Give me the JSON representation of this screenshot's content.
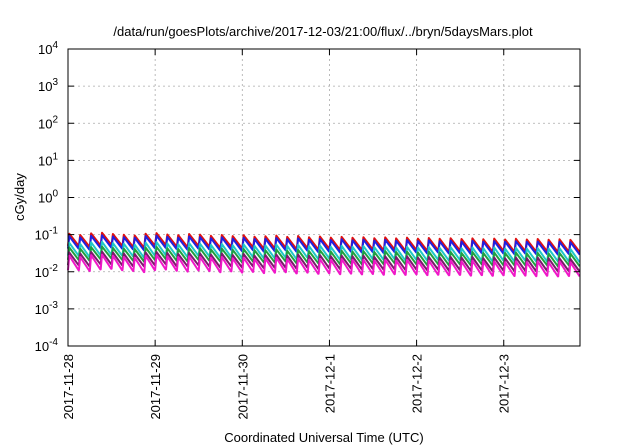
{
  "chart_data": {
    "type": "line",
    "title": "/data/run/goesPlots/archive/2017-12-03/21:00/flux/../bryn/5daysMars.plot",
    "xlabel": "Coordinated Universal Time (UTC)",
    "ylabel": "cGy/day",
    "yscale": "log",
    "ylim": [
      0.0001,
      10000
    ],
    "xlim": [
      "2017-11-28 00:00",
      "2017-12-03 21:00"
    ],
    "y_ticks": [
      {
        "base": "10",
        "exp": "-4"
      },
      {
        "base": "10",
        "exp": "-3"
      },
      {
        "base": "10",
        "exp": "-2"
      },
      {
        "base": "10",
        "exp": "-1"
      },
      {
        "base": "10",
        "exp": "0"
      },
      {
        "base": "10",
        "exp": "1"
      },
      {
        "base": "10",
        "exp": "2"
      },
      {
        "base": "10",
        "exp": "3"
      },
      {
        "base": "10",
        "exp": "4"
      }
    ],
    "x_ticks": [
      "2017-11-28",
      "2017-11-29",
      "2017-11-30",
      "2017-12-1",
      "2017-12-2",
      "2017-12-3"
    ],
    "grid": true,
    "legend": "none",
    "sawtooth_period_hours": 3,
    "series": [
      {
        "color": "#e01010",
        "peak_values": [
          0.105,
          0.098,
          0.108,
          0.112,
          0.104,
          0.099,
          0.095,
          0.106,
          0.11,
          0.101,
          0.097,
          0.104,
          0.1,
          0.093,
          0.098,
          0.091,
          0.096,
          0.088,
          0.09,
          0.094,
          0.087,
          0.092,
          0.085,
          0.089,
          0.083,
          0.087,
          0.082,
          0.085,
          0.08,
          0.084,
          0.079,
          0.083,
          0.078,
          0.081,
          0.077,
          0.08,
          0.076,
          0.079,
          0.075,
          0.078,
          0.074,
          0.077,
          0.074,
          0.076,
          0.073,
          0.075,
          0.072
        ],
        "trough_values": [
          0.05,
          0.047,
          0.052,
          0.054,
          0.05,
          0.047,
          0.045,
          0.051,
          0.053,
          0.048,
          0.046,
          0.05,
          0.048,
          0.044,
          0.047,
          0.043,
          0.046,
          0.042,
          0.043,
          0.045,
          0.041,
          0.044,
          0.04,
          0.042,
          0.039,
          0.041,
          0.039,
          0.04,
          0.038,
          0.04,
          0.037,
          0.039,
          0.037,
          0.038,
          0.036,
          0.038,
          0.036,
          0.037,
          0.035,
          0.037,
          0.035,
          0.036,
          0.035,
          0.036,
          0.034,
          0.035,
          0.034
        ]
      },
      {
        "color": "#2020e0",
        "peak_values": [
          0.09,
          0.084,
          0.093,
          0.096,
          0.089,
          0.085,
          0.082,
          0.091,
          0.094,
          0.087,
          0.083,
          0.089,
          0.086,
          0.08,
          0.084,
          0.078,
          0.082,
          0.076,
          0.077,
          0.081,
          0.075,
          0.079,
          0.073,
          0.076,
          0.071,
          0.075,
          0.07,
          0.073,
          0.069,
          0.072,
          0.068,
          0.071,
          0.067,
          0.07,
          0.066,
          0.069,
          0.065,
          0.068,
          0.064,
          0.067,
          0.064,
          0.066,
          0.064,
          0.065,
          0.063,
          0.064,
          0.062
        ],
        "trough_values": [
          0.042,
          0.039,
          0.044,
          0.045,
          0.042,
          0.04,
          0.038,
          0.043,
          0.044,
          0.041,
          0.039,
          0.042,
          0.04,
          0.037,
          0.039,
          0.036,
          0.038,
          0.035,
          0.036,
          0.038,
          0.035,
          0.037,
          0.034,
          0.035,
          0.033,
          0.035,
          0.033,
          0.034,
          0.032,
          0.034,
          0.032,
          0.033,
          0.031,
          0.033,
          0.031,
          0.032,
          0.03,
          0.032,
          0.03,
          0.031,
          0.03,
          0.031,
          0.03,
          0.03,
          0.029,
          0.03,
          0.029
        ]
      },
      {
        "color": "#20c8c8",
        "peak_values": [
          0.06,
          0.056,
          0.062,
          0.064,
          0.059,
          0.057,
          0.054,
          0.061,
          0.063,
          0.058,
          0.055,
          0.059,
          0.057,
          0.053,
          0.056,
          0.052,
          0.055,
          0.05,
          0.051,
          0.054,
          0.05,
          0.053,
          0.049,
          0.051,
          0.047,
          0.05,
          0.047,
          0.049,
          0.046,
          0.048,
          0.045,
          0.047,
          0.045,
          0.046,
          0.044,
          0.046,
          0.043,
          0.045,
          0.043,
          0.045,
          0.042,
          0.044,
          0.042,
          0.043,
          0.042,
          0.043,
          0.041
        ],
        "trough_values": [
          0.027,
          0.025,
          0.028,
          0.029,
          0.027,
          0.026,
          0.024,
          0.027,
          0.028,
          0.026,
          0.025,
          0.027,
          0.026,
          0.024,
          0.025,
          0.023,
          0.025,
          0.023,
          0.023,
          0.024,
          0.022,
          0.024,
          0.022,
          0.023,
          0.021,
          0.022,
          0.021,
          0.022,
          0.021,
          0.022,
          0.02,
          0.021,
          0.02,
          0.021,
          0.02,
          0.021,
          0.019,
          0.02,
          0.019,
          0.02,
          0.019,
          0.02,
          0.019,
          0.019,
          0.019,
          0.019,
          0.018
        ]
      },
      {
        "color": "#20a040",
        "peak_values": [
          0.045,
          0.042,
          0.046,
          0.048,
          0.044,
          0.042,
          0.041,
          0.045,
          0.047,
          0.043,
          0.041,
          0.044,
          0.043,
          0.04,
          0.042,
          0.039,
          0.041,
          0.038,
          0.038,
          0.04,
          0.037,
          0.039,
          0.036,
          0.038,
          0.035,
          0.037,
          0.035,
          0.036,
          0.034,
          0.036,
          0.034,
          0.035,
          0.033,
          0.035,
          0.033,
          0.034,
          0.032,
          0.034,
          0.032,
          0.033,
          0.032,
          0.033,
          0.031,
          0.032,
          0.031,
          0.032,
          0.031
        ],
        "trough_values": [
          0.021,
          0.02,
          0.022,
          0.023,
          0.021,
          0.02,
          0.019,
          0.021,
          0.022,
          0.02,
          0.019,
          0.021,
          0.02,
          0.019,
          0.02,
          0.018,
          0.019,
          0.018,
          0.018,
          0.019,
          0.017,
          0.018,
          0.017,
          0.018,
          0.016,
          0.017,
          0.016,
          0.017,
          0.016,
          0.017,
          0.016,
          0.016,
          0.015,
          0.016,
          0.015,
          0.016,
          0.015,
          0.016,
          0.015,
          0.015,
          0.015,
          0.015,
          0.014,
          0.015,
          0.014,
          0.015,
          0.014
        ]
      },
      {
        "color": "#7a1a6a",
        "peak_values": [
          0.033,
          0.031,
          0.034,
          0.035,
          0.033,
          0.031,
          0.03,
          0.033,
          0.034,
          0.032,
          0.03,
          0.032,
          0.031,
          0.029,
          0.031,
          0.028,
          0.03,
          0.027,
          0.028,
          0.029,
          0.027,
          0.029,
          0.027,
          0.028,
          0.026,
          0.027,
          0.026,
          0.027,
          0.025,
          0.026,
          0.025,
          0.026,
          0.024,
          0.025,
          0.024,
          0.025,
          0.024,
          0.025,
          0.023,
          0.024,
          0.023,
          0.024,
          0.023,
          0.024,
          0.023,
          0.023,
          0.022
        ],
        "trough_values": [
          0.015,
          0.014,
          0.016,
          0.016,
          0.015,
          0.014,
          0.014,
          0.015,
          0.016,
          0.014,
          0.014,
          0.015,
          0.014,
          0.013,
          0.014,
          0.013,
          0.014,
          0.0125,
          0.0128,
          0.013,
          0.0122,
          0.013,
          0.012,
          0.0125,
          0.0118,
          0.0122,
          0.0116,
          0.012,
          0.0114,
          0.0118,
          0.0112,
          0.0116,
          0.011,
          0.0114,
          0.0108,
          0.0112,
          0.0107,
          0.011,
          0.0105,
          0.0108,
          0.0104,
          0.0107,
          0.0103,
          0.0106,
          0.0102,
          0.0104,
          0.0101
        ]
      },
      {
        "color": "#f018c8",
        "peak_values": [
          0.027,
          0.025,
          0.028,
          0.029,
          0.027,
          0.025,
          0.024,
          0.027,
          0.028,
          0.026,
          0.025,
          0.026,
          0.025,
          0.024,
          0.025,
          0.023,
          0.024,
          0.022,
          0.023,
          0.024,
          0.022,
          0.023,
          0.021,
          0.022,
          0.021,
          0.022,
          0.021,
          0.021,
          0.02,
          0.021,
          0.02,
          0.021,
          0.02,
          0.02,
          0.019,
          0.02,
          0.019,
          0.02,
          0.019,
          0.019,
          0.018,
          0.019,
          0.018,
          0.019,
          0.018,
          0.019,
          0.018
        ],
        "trough_values": [
          0.011,
          0.0105,
          0.0116,
          0.012,
          0.011,
          0.0105,
          0.0098,
          0.011,
          0.0115,
          0.0106,
          0.0101,
          0.0108,
          0.0104,
          0.0097,
          0.0102,
          0.0095,
          0.0099,
          0.0092,
          0.0094,
          0.0097,
          0.009,
          0.0095,
          0.0088,
          0.0091,
          0.0086,
          0.0089,
          0.0085,
          0.0087,
          0.0083,
          0.0086,
          0.0082,
          0.0085,
          0.0081,
          0.0083,
          0.008,
          0.0082,
          0.0079,
          0.0081,
          0.0078,
          0.008,
          0.0077,
          0.0079,
          0.0076,
          0.0078,
          0.0075,
          0.0077,
          0.0075
        ]
      }
    ]
  }
}
